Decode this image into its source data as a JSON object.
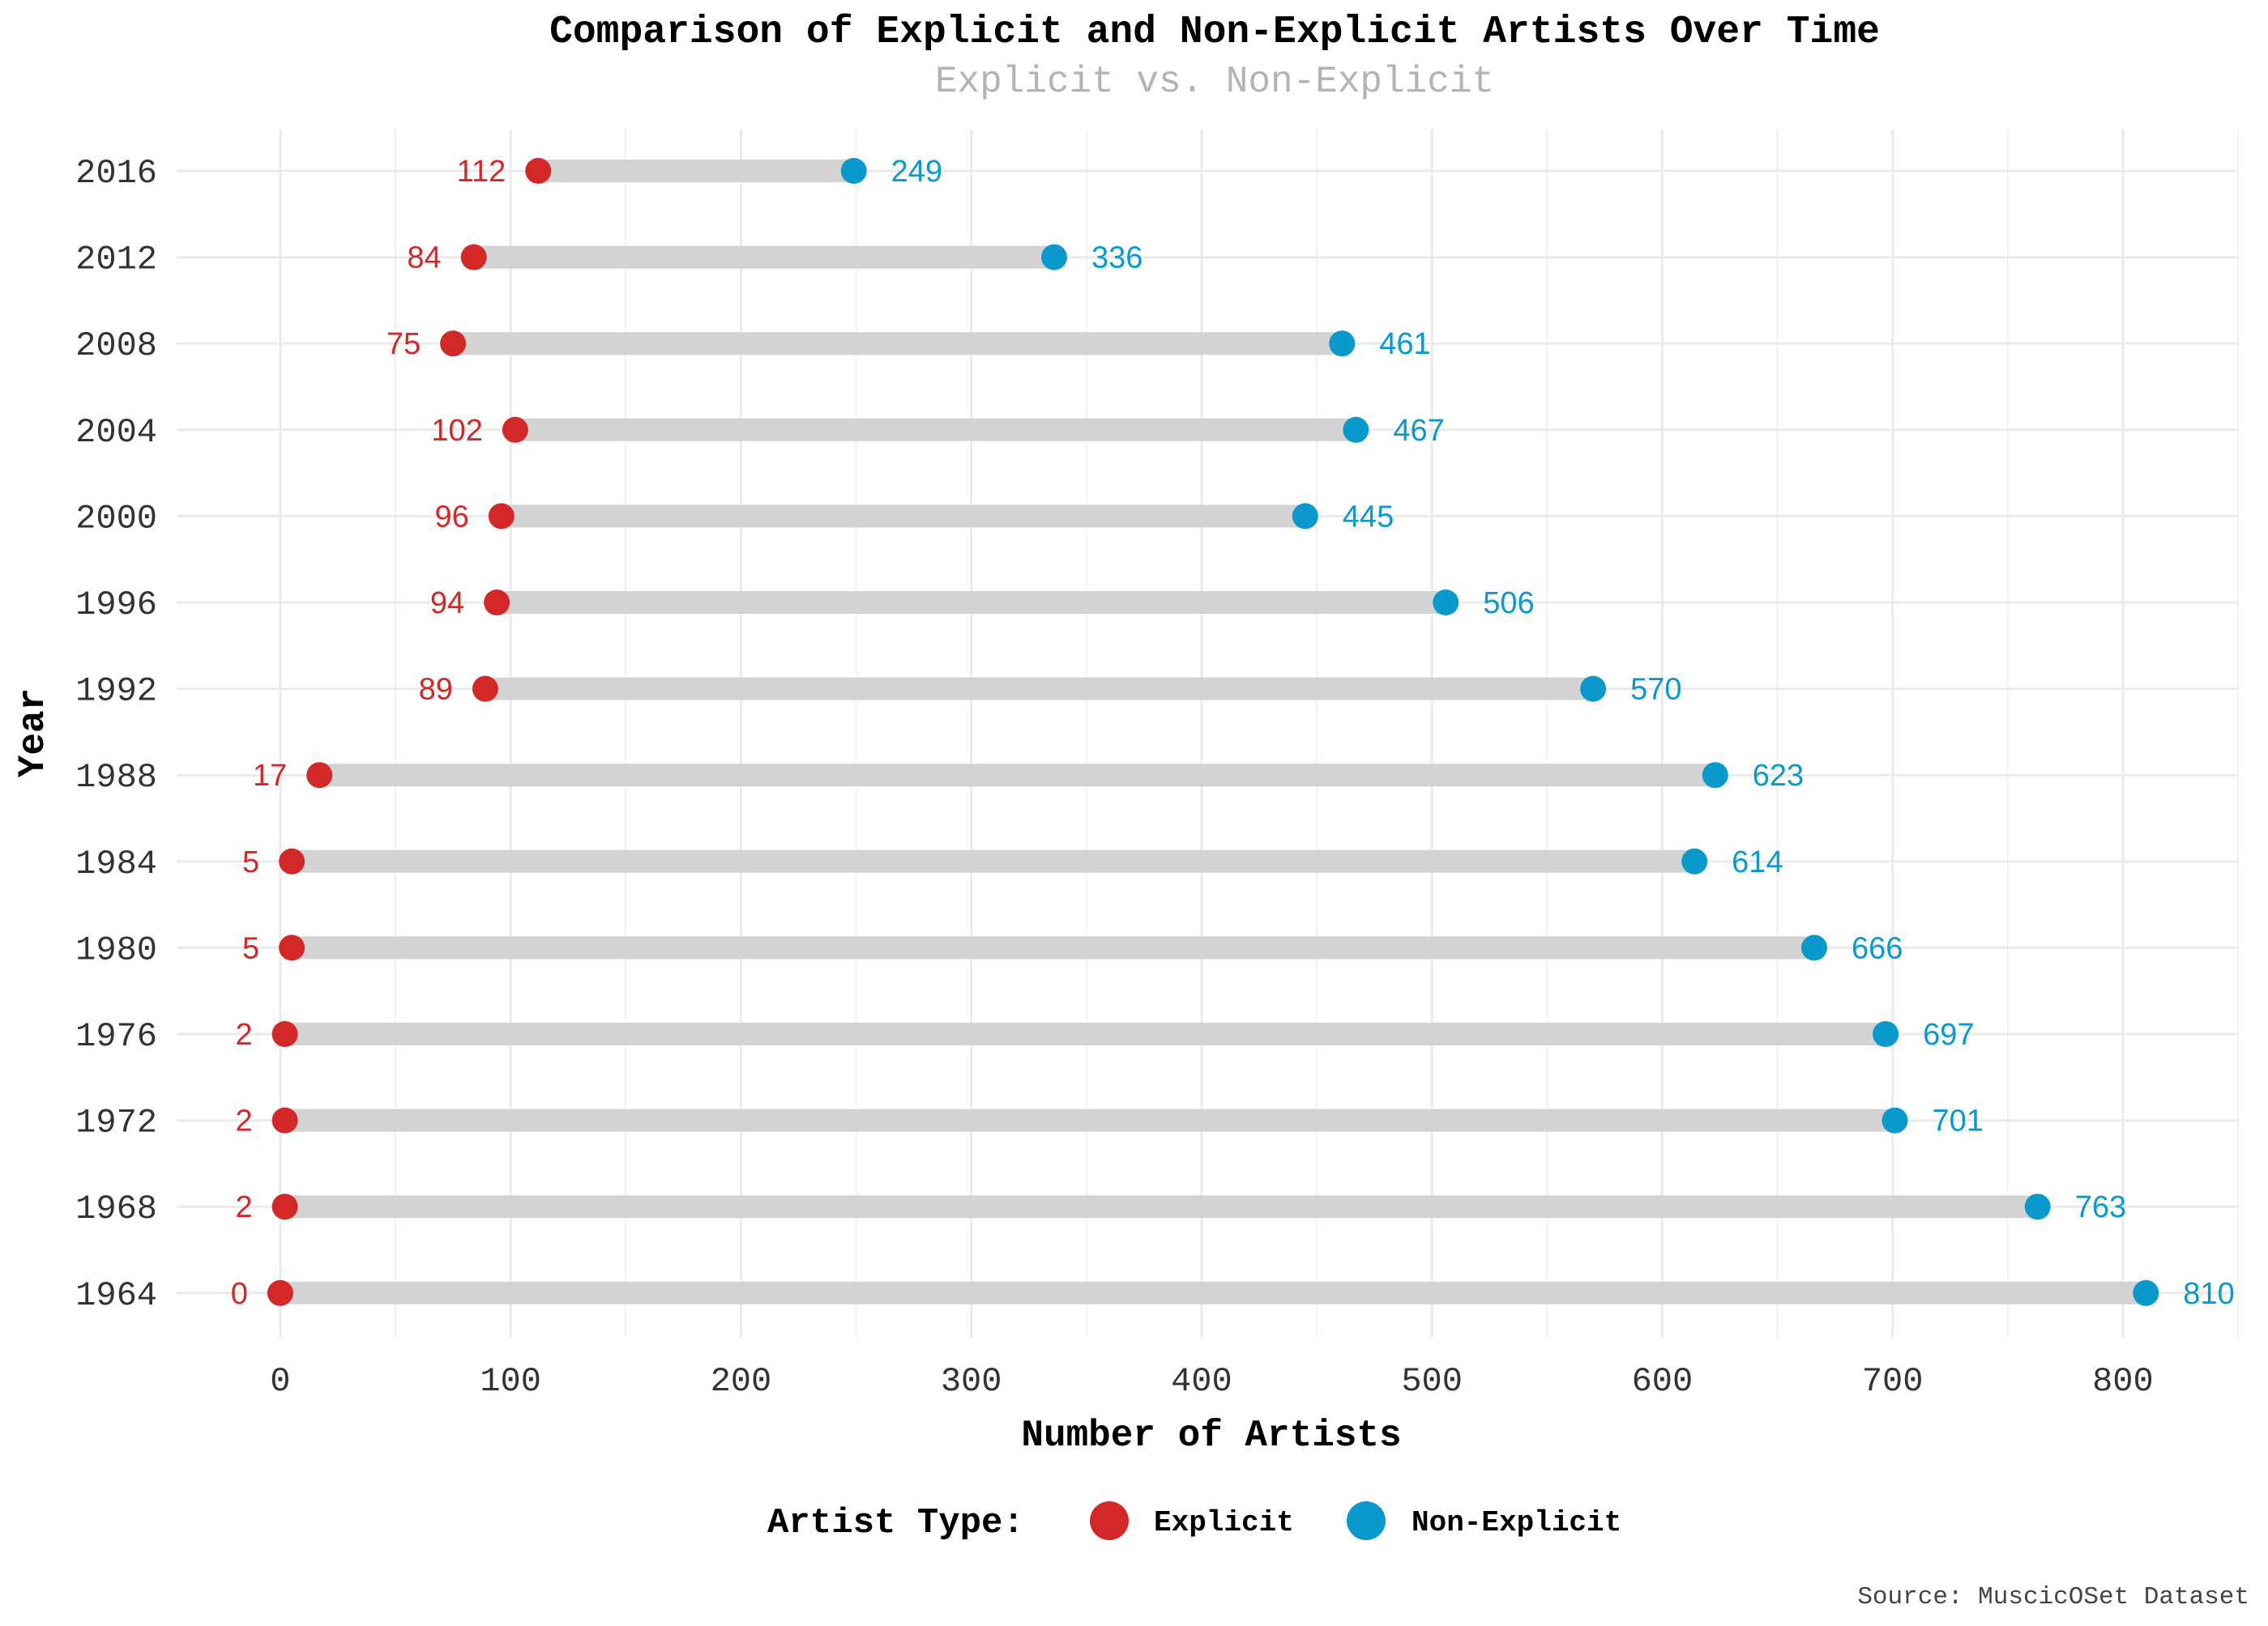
{
  "chart_data": {
    "type": "dumbbell",
    "title": "Comparison of Explicit and Non-Explicit Artists Over Time",
    "subtitle": "Explicit vs. Non-Explicit",
    "xlabel": "Number of Artists",
    "ylabel": "Year",
    "xlim": [
      -45,
      850
    ],
    "x_ticks": [
      0,
      100,
      200,
      300,
      400,
      500,
      600,
      700,
      800
    ],
    "grid": true,
    "legend": {
      "title": "Artist Type:",
      "position": "bottom",
      "entries": [
        {
          "name": "Explicit",
          "color": "#d32828"
        },
        {
          "name": "Non-Explicit",
          "color": "#0a99cc"
        }
      ]
    },
    "caption": "Source: MuscicOSet Dataset",
    "categories": [
      "2016",
      "2012",
      "2008",
      "2004",
      "2000",
      "1996",
      "1992",
      "1988",
      "1984",
      "1980",
      "1976",
      "1972",
      "1968",
      "1964"
    ],
    "series": [
      {
        "name": "Explicit",
        "color": "#d32828",
        "values": [
          112,
          84,
          75,
          102,
          96,
          94,
          89,
          17,
          5,
          5,
          2,
          2,
          2,
          0
        ]
      },
      {
        "name": "Non-Explicit",
        "color": "#0a99cc",
        "values": [
          249,
          336,
          461,
          467,
          445,
          506,
          570,
          623,
          614,
          666,
          697,
          701,
          763,
          810
        ]
      }
    ],
    "segment_color": "#d3d3d3"
  }
}
